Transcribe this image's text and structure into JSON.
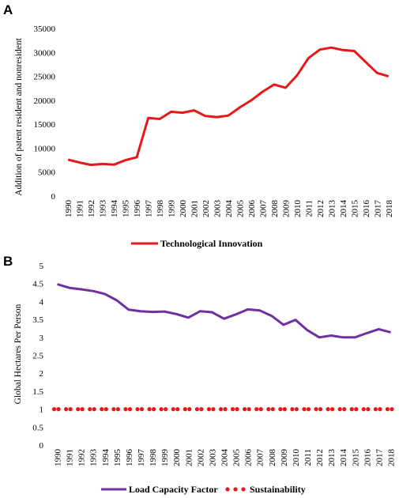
{
  "chart_data": [
    {
      "panel": "A",
      "type": "line",
      "title": "",
      "xlabel": "",
      "ylabel": "Addition of patent resident and nonresident",
      "ylim": [
        0,
        35000
      ],
      "yticks": [
        0,
        5000,
        10000,
        15000,
        20000,
        25000,
        30000,
        35000
      ],
      "x": [
        "1990",
        "1991",
        "1992",
        "1993",
        "1994",
        "1995",
        "1996",
        "1997",
        "1998",
        "1999",
        "2000",
        "2001",
        "2002",
        "2003",
        "2004",
        "2005",
        "2006",
        "2007",
        "2008",
        "2009",
        "2010",
        "2011",
        "2012",
        "2013",
        "2014",
        "2015",
        "2016",
        "2017",
        "2018"
      ],
      "grid": false,
      "legend_position": "bottom",
      "series": [
        {
          "name": "Technological Innovation",
          "color": "#e8171b",
          "style": "solid",
          "values": [
            7600,
            7000,
            6500,
            6700,
            6550,
            7500,
            8100,
            16300,
            16100,
            17600,
            17400,
            17900,
            16700,
            16500,
            16800,
            18500,
            20000,
            21800,
            23300,
            22600,
            25200,
            28800,
            30600,
            31000,
            30500,
            30300,
            28000,
            25700,
            25000
          ]
        }
      ]
    },
    {
      "panel": "B",
      "type": "line",
      "title": "",
      "xlabel": "",
      "ylabel": "Global Hectares Per Person",
      "ylim": [
        0,
        5
      ],
      "yticks": [
        0,
        0.5,
        1,
        1.5,
        2,
        2.5,
        3,
        3.5,
        4,
        4.5,
        5
      ],
      "x": [
        "1990",
        "1991",
        "1992",
        "1993",
        "1994",
        "1995",
        "1996",
        "1997",
        "1998",
        "1999",
        "2000",
        "2001",
        "2002",
        "2003",
        "2004",
        "2005",
        "2006",
        "2007",
        "2008",
        "2009",
        "2010",
        "2011",
        "2012",
        "2013",
        "2014",
        "2015",
        "2016",
        "2017",
        "2018"
      ],
      "grid": false,
      "legend_position": "bottom",
      "series": [
        {
          "name": "Load Capacity Factor",
          "color": "#7030a0",
          "style": "solid",
          "values": [
            4.48,
            4.38,
            4.34,
            4.29,
            4.21,
            4.03,
            3.77,
            3.73,
            3.71,
            3.72,
            3.65,
            3.55,
            3.73,
            3.7,
            3.52,
            3.64,
            3.78,
            3.75,
            3.6,
            3.35,
            3.49,
            3.2,
            3.0,
            3.05,
            3.0,
            3.0,
            3.12,
            3.23,
            3.14
          ]
        },
        {
          "name": "Sustainability",
          "color": "#e8171b",
          "style": "dotted",
          "values": [
            1,
            1,
            1,
            1,
            1,
            1,
            1,
            1,
            1,
            1,
            1,
            1,
            1,
            1,
            1,
            1,
            1,
            1,
            1,
            1,
            1,
            1,
            1,
            1,
            1,
            1,
            1,
            1,
            1
          ]
        }
      ]
    }
  ]
}
